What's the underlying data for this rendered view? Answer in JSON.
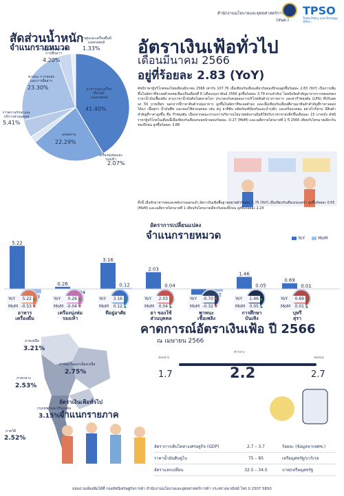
{
  "header": {
    "org": "สำนักงานนโยบายและยุทธศาสตร์การค้า (สนค.)",
    "logo_text": "TPSO",
    "logo_sub": "Trade Policy and Strategy Office"
  },
  "weights": {
    "title": "สัดส่วนน้ำหนัก",
    "subtitle": "จำแนกรายหมวด",
    "slices": [
      {
        "label": "อาหารและเครื่องดื่มไม่มีแอลกอฮอล์",
        "value": "41.40%",
        "pct": 41.4,
        "color": "#4f7fc7"
      },
      {
        "label": "เคหสถาน",
        "value": "22.29%",
        "pct": 22.29,
        "color": "#7fa6dd"
      },
      {
        "label": "เครื่องนุ่งห่มและรองเท้า",
        "value": "2.07%",
        "pct": 2.07,
        "color": "#dce6f4"
      },
      {
        "label": "การตรวจรักษาและบริการส่วนบุคคล",
        "value": "5.41%",
        "pct": 5.41,
        "color": "#b7cbe9"
      },
      {
        "label": "พาหนะ การขนส่งและการสื่อสาร",
        "value": "23.30%",
        "pct": 23.3,
        "color": "#a8c1e6"
      },
      {
        "label": "การบันเทิง การอ่าน การศึกษาฯ",
        "value": "4.20%",
        "pct": 4.2,
        "color": "#c9d8ef"
      },
      {
        "label": "ยาสูบและเครื่องดื่มมีแอลกอฮอล์",
        "value": "1.33%",
        "pct": 1.33,
        "color": "#eaf0f9"
      }
    ]
  },
  "headline": {
    "title": "อัตราเงินเฟ้อทั่วไป",
    "month": "เดือนมีนาคม 2566",
    "rate": "อยู่ที่ร้อยละ 2.83 (YoY)"
  },
  "body_text": {
    "p1": "ดัชนีราคาผู้บริโภคของไทยเดือนมีนาคม 2566 เท่ากับ 107.76 เมื่อเทียบกับเดือนเดียวกันของปีก่อนสูงขึ้นร้อยละ 2.83 (YoY) เป็นการเพิ่มขึ้นในอัตราที่ชะลอตัวลงต่อเนื่องเป็นเดือนที่ 6 (เดือนกุมภาพันธ์ 2566 สูงขึ้นร้อยละ 3.79 ตามลำดับ) โดยปัจจัยสำคัญมาจากการลดลงของราคาน้ำมันเชื้อเพลิง ตามราคาน้ำมันดิบในตลาดโลก ประกอบกับคนผ่อนการบริโภคสินค้าบางรายการ และค่าก๊าซหุงต้ม (LPG) ที่ปรับลดลง 50 บาท/ลิตร นอกจากนี้ราคาสินค้ากลุ่มอาหาร สูงขึ้นในอัตราที่ชะลอตัวลง และเมื่อเทียบกับเดือนที่ผ่านมาสินค้าสำคัญที่ราคาลดลง ได้แก่ เนื้อสุกร น้ำมันพืช และของใช้ส่วนบุคคล เช่น สบู่ ยาสีฟัน ผลิตภัณฑ์ป้องกันและบำรุงผิว และครีมนวดผม อย่างไรก็ตาม มีสินค้าสำคัญที่ราคาสูงขึ้น คือ ก๊าซหุงต้ม เนื่องจากคณะกรรมการบริหารนโยบายพลังงานมีมติให้ปรับราคาขายปลีกขึ้นเดือนละ 15 บาท/ถัง ดัชนีราคาผู้บริโภคในเดือนนี้เมื่อเทียบกับเดือนก่อนหน้าลดลงร้อยละ -0.27 (MoM) และเฉลี่ยรายไตรมาสที่ 1 ปี 2566 เทียบกับไตรมาสเดียวกันของปีก่อน สูงขึ้นร้อยละ 3.88",
    "p2": "ทั้งนี้ เมื่อหักอาหารสดและพลังงานออกแล้ว อัตราเงินเฟ้อพื้นฐานขยายตัวร้อยละ 1.75 (YoY) เมื่อเทียบกับเดือนก่อนหน้า สูงขึ้นร้อยละ 0.05 (MoM) และเฉลี่ยรายไตรมาสที่ 1 เทียบกับไตรมาสเดียวกันของปีก่อน สูงขึ้นร้อยละ 2.24"
  },
  "change": {
    "title1": "อัตราการเปลี่ยนแปลง",
    "title2": "จำแนกรายหมวด",
    "legend_yoy": "YoY",
    "legend_mom": "MoM",
    "color_yoy": "#3d6fc2",
    "color_mom": "#9fc0ea",
    "row_yoy": "YoY",
    "row_mom": "MoM",
    "categories": [
      {
        "name": "อาหาร\nเครื่องดื่ม",
        "yoy": 5.22,
        "mom": -0.53,
        "yoy_t": "5.22",
        "mom_t": "-0.53"
      },
      {
        "name": "เครื่องนุ่งห่ม\nรองเท้า",
        "yoy": 0.26,
        "mom": -0.04,
        "yoy_t": "0.26",
        "mom_t": "-0.04"
      },
      {
        "name": "ที่อยู่อาศัย",
        "yoy": 3.16,
        "mom": 0.12,
        "yoy_t": "3.16",
        "mom_t": "0.12"
      },
      {
        "name": "ยา ของใช้\nส่วนบุคคล",
        "yoy": 2.03,
        "mom": 0.04,
        "yoy_t": "2.03",
        "mom_t": "0.04"
      },
      {
        "name": "พาหนะ\nเชื้อเพลิง",
        "yoy": -0.7,
        "mom": -0.32,
        "yoy_t": "-0.70",
        "mom_t": "-0.32"
      },
      {
        "name": "การศึกษา\nบันเทิง",
        "yoy": 1.46,
        "mom": 0.05,
        "yoy_t": "1.46",
        "mom_t": "0.05"
      },
      {
        "name": "บุหรี่\nสุรา",
        "yoy": 0.69,
        "mom": 0.01,
        "yoy_t": "0.69",
        "mom_t": "0.01"
      }
    ]
  },
  "forecast": {
    "title": "คาดการณ์อัตราเงินเฟ้อ ปี 2566",
    "as_of": "ณ เมษายน 2566",
    "low_label": "ขอบล่าง",
    "mid_label": "ค่ากลาง",
    "high_label": "ขอบบน",
    "low": "1.7",
    "mid": "2.2",
    "high": "2.7"
  },
  "assumptions": [
    {
      "name": "อัตราการเติบโตทางเศรษฐกิจ (GDP)",
      "range": "2.7 – 3.7",
      "unit": "ร้อยละ (ข้อมูลจากสศช.)"
    },
    {
      "name": "ราคาน้ำมันดิบดูไบ",
      "range": "75 – 85",
      "unit": "เหรียญสหรัฐ/บาร์เรล"
    },
    {
      "name": "อัตราแลกเปลี่ยน",
      "range": "32.5 – 34.5",
      "unit": "บาท/เหรียญสหรัฐ"
    }
  ],
  "regions": {
    "title1": "อัตราเงินเฟ้อทั่วไป",
    "title2": "จำแนกรายภาค",
    "items": [
      {
        "name": "ภาคเหนือ",
        "value": "3.21%"
      },
      {
        "name": "ภาคตะวันออกเฉียงเหนือ",
        "value": "2.75%"
      },
      {
        "name": "ภาคกลาง",
        "value": "2.53%"
      },
      {
        "name": "กรุงเทพฯและปริมณฑล",
        "value": "3.15%"
      },
      {
        "name": "ภาคใต้",
        "value": "2.52%"
      }
    ]
  },
  "footer": "สอบถามเพิ่มเติมได้ที่ กองดัชนีเศรษฐกิจการค้า  สำนักงานนโยบายและยุทธศาสตร์การค้า กระทรวงพาณิชย์ โทร 0 2507 5850"
}
